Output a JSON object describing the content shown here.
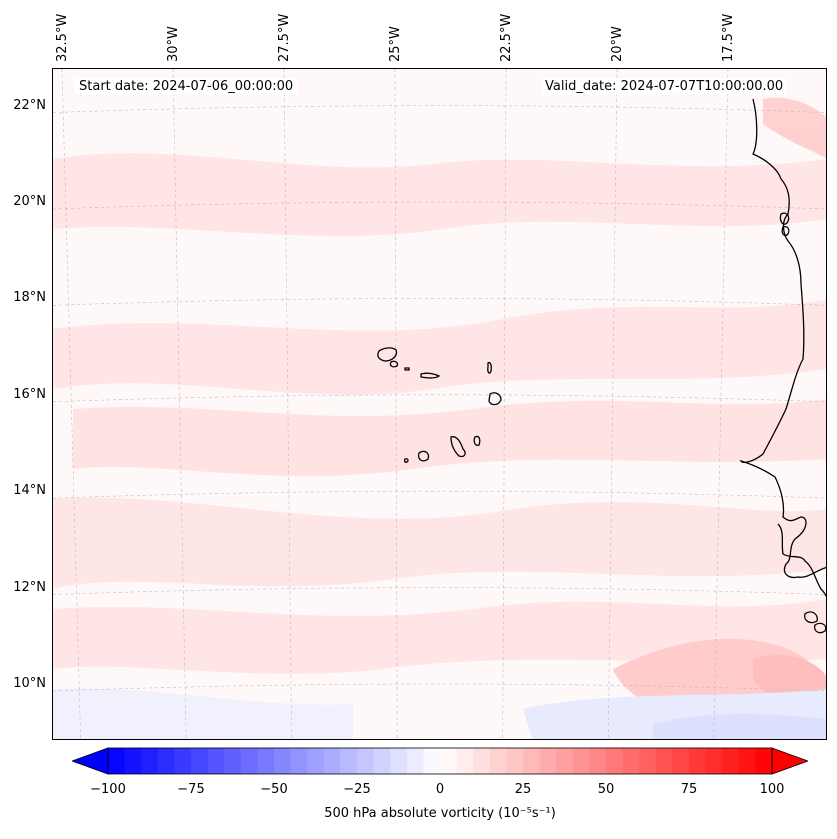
{
  "title": {
    "start_date": "Start date: 2024-07-06_00:00:00",
    "valid_date": "Valid_date: 2024-07-07T10:00:00.00"
  },
  "map": {
    "projection": "lambert-conformal",
    "extent": {
      "lon_min": -33,
      "lon_max": -15.5,
      "lat_min": 9,
      "lat_max": 22.5
    },
    "longitude_labels": [
      {
        "value": -32.5,
        "text": "32.5°W"
      },
      {
        "value": -30,
        "text": "30°W"
      },
      {
        "value": -27.5,
        "text": "27.5°W"
      },
      {
        "value": -25,
        "text": "25°W"
      },
      {
        "value": -22.5,
        "text": "22.5°W"
      },
      {
        "value": -20,
        "text": "20°W"
      },
      {
        "value": -17.5,
        "text": "17.5°W"
      }
    ],
    "latitude_labels": [
      {
        "value": 22,
        "text": "22°N"
      },
      {
        "value": 20,
        "text": "20°N"
      },
      {
        "value": 18,
        "text": "18°N"
      },
      {
        "value": 16,
        "text": "16°N"
      },
      {
        "value": 14,
        "text": "14°N"
      },
      {
        "value": 12,
        "text": "12°N"
      },
      {
        "value": 10,
        "text": "10°N"
      }
    ],
    "features": [
      "Cape Verde islands",
      "West African coastline",
      "500 hPa vorticity field"
    ],
    "colors": {
      "coast": "#000000",
      "grid": "#bbbbbb",
      "background": "#fff8f8",
      "light_red": "#ffd4d4",
      "mid_red": "#ffb8b8",
      "light_blue": "#dde4ff"
    }
  },
  "colorbar": {
    "label": "500 hPa absolute vorticity (10⁻⁵s⁻¹)",
    "min": -100,
    "max": 100,
    "levels": 40,
    "ticks": [
      {
        "value": -100,
        "text": "−100"
      },
      {
        "value": -75,
        "text": "−75"
      },
      {
        "value": -50,
        "text": "−50"
      },
      {
        "value": -25,
        "text": "−25"
      },
      {
        "value": 0,
        "text": "0"
      },
      {
        "value": 25,
        "text": "25"
      },
      {
        "value": 50,
        "text": "50"
      },
      {
        "value": 75,
        "text": "75"
      },
      {
        "value": 100,
        "text": "100"
      }
    ],
    "cmap_low": "#0000ff",
    "cmap_mid": "#ffffff",
    "cmap_high": "#ff0000"
  }
}
